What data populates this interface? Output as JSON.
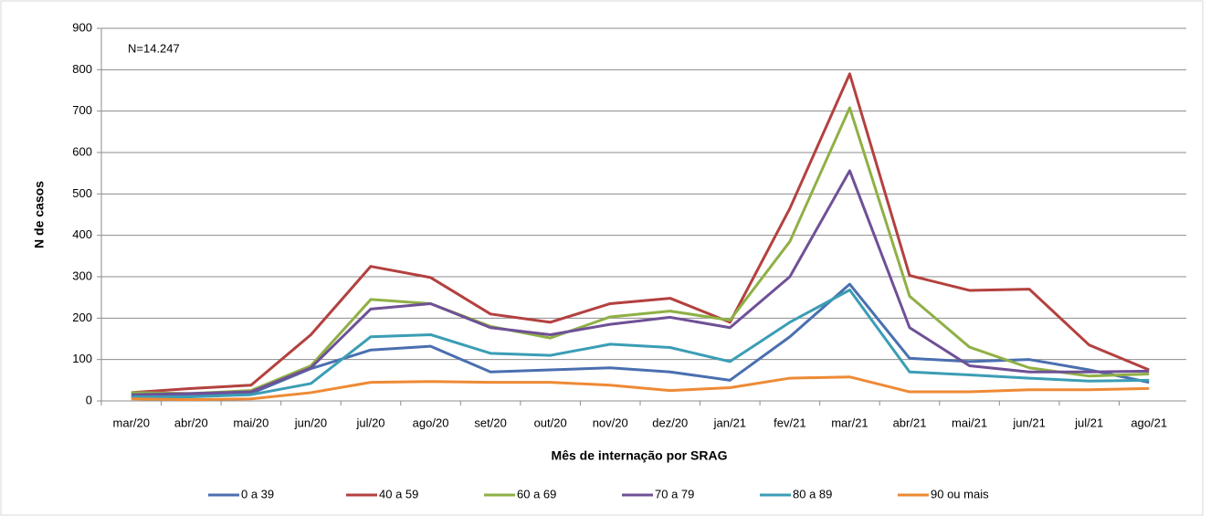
{
  "chart_data": {
    "type": "line",
    "annotation": "N=14.247",
    "xlabel": "Mês de internação por SRAG",
    "ylabel": "N de casos",
    "categories": [
      "mar/20",
      "abr/20",
      "mai/20",
      "jun/20",
      "jul/20",
      "ago/20",
      "set/20",
      "out/20",
      "nov/20",
      "dez/20",
      "jan/21",
      "fev/21",
      "mar/21",
      "abr/21",
      "mai/21",
      "jun/21",
      "jul/21",
      "ago/21"
    ],
    "series": [
      {
        "name": "0 a 39",
        "color": "#4a6fb0",
        "values": [
          10,
          12,
          18,
          78,
          123,
          132,
          70,
          75,
          80,
          70,
          50,
          155,
          282,
          103,
          95,
          100,
          75,
          45
        ]
      },
      {
        "name": "40 a 59",
        "color": "#b3413f",
        "values": [
          20,
          30,
          38,
          160,
          325,
          298,
          210,
          190,
          235,
          248,
          190,
          465,
          790,
          303,
          267,
          270,
          135,
          75
        ]
      },
      {
        "name": "60 a 69",
        "color": "#8fb045",
        "values": [
          20,
          18,
          25,
          85,
          245,
          235,
          180,
          152,
          203,
          217,
          195,
          385,
          708,
          253,
          130,
          80,
          60,
          65
        ]
      },
      {
        "name": "70 a 79",
        "color": "#6f5096",
        "values": [
          15,
          18,
          22,
          80,
          222,
          235,
          177,
          160,
          185,
          202,
          177,
          300,
          556,
          177,
          85,
          70,
          70,
          72
        ]
      },
      {
        "name": "80 a 89",
        "color": "#3b9db5",
        "values": [
          10,
          10,
          15,
          42,
          155,
          160,
          115,
          110,
          137,
          129,
          95,
          190,
          268,
          70,
          63,
          55,
          48,
          50
        ]
      },
      {
        "name": "90 ou mais",
        "color": "#ee8a35",
        "values": [
          5,
          3,
          5,
          20,
          45,
          47,
          45,
          45,
          38,
          25,
          32,
          55,
          58,
          22,
          22,
          27,
          27,
          30
        ]
      }
    ],
    "ylim": [
      0,
      900
    ],
    "yticks": [
      0,
      100,
      200,
      300,
      400,
      500,
      600,
      700,
      800,
      900
    ],
    "grid": true,
    "legend": "bottom"
  }
}
